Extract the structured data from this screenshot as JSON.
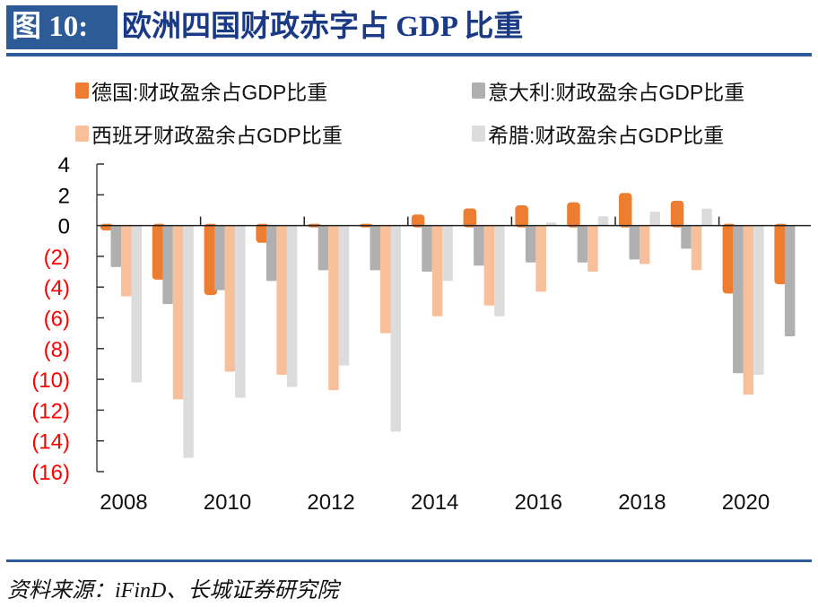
{
  "header": {
    "figure_label": "图 10:",
    "title": "欧洲四国财政赤字占 GDP 比重"
  },
  "footer": {
    "source": "资料来源：iFinD、长城证券研究院"
  },
  "chart_data": {
    "type": "bar",
    "title": "欧洲四国财政赤字占 GDP 比重",
    "xlabel": "",
    "ylabel": "",
    "ylim": [
      -16,
      4
    ],
    "yticks": [
      4,
      2,
      0,
      -2,
      -4,
      -6,
      -8,
      -10,
      -12,
      -14,
      -16
    ],
    "ytick_labels": [
      "4",
      "2",
      "0",
      "(2)",
      "(4)",
      "(6)",
      "(8)",
      "(10)",
      "(12)",
      "(14)",
      "(16)"
    ],
    "negative_label_color": "#FF0000",
    "positive_label_color": "#000000",
    "categories": [
      "2008",
      "2009",
      "2010",
      "2011",
      "2012",
      "2013",
      "2014",
      "2015",
      "2016",
      "2017",
      "2018",
      "2019",
      "2020",
      "2021"
    ],
    "xtick_labels": [
      "2008",
      "2010",
      "2012",
      "2014",
      "2016",
      "2018",
      "2020"
    ],
    "grid": false,
    "legend_position": "top",
    "series": [
      {
        "name": "德国:财政盈余占GDP比重",
        "color": "#ED7D31",
        "values": [
          -0.2,
          -3.4,
          -4.4,
          -1.0,
          0.0,
          0.0,
          0.6,
          1.0,
          1.2,
          1.4,
          2.0,
          1.5,
          -4.3,
          -3.7
        ]
      },
      {
        "name": "意大利:财政盈余占GDP比重",
        "color": "#B0B0B0",
        "values": [
          -2.7,
          -5.1,
          -4.2,
          -3.6,
          -2.9,
          -2.9,
          -3.0,
          -2.6,
          -2.4,
          -2.4,
          -2.2,
          -1.5,
          -9.6,
          -7.2
        ]
      },
      {
        "name": "西班牙财政盈余占GDP比重",
        "color": "#F8C09A",
        "values": [
          -4.6,
          -11.3,
          -9.5,
          -9.7,
          -10.7,
          -7.0,
          -5.9,
          -5.2,
          -4.3,
          -3.0,
          -2.5,
          -2.9,
          -11.0,
          null
        ]
      },
      {
        "name": "希腊:财政盈余占GDP比重",
        "color": "#DCDCDC",
        "values": [
          -10.2,
          -15.1,
          -11.2,
          -10.5,
          -9.1,
          -13.4,
          -3.6,
          -5.9,
          0.2,
          0.6,
          0.9,
          1.1,
          -9.7,
          null
        ]
      }
    ]
  }
}
